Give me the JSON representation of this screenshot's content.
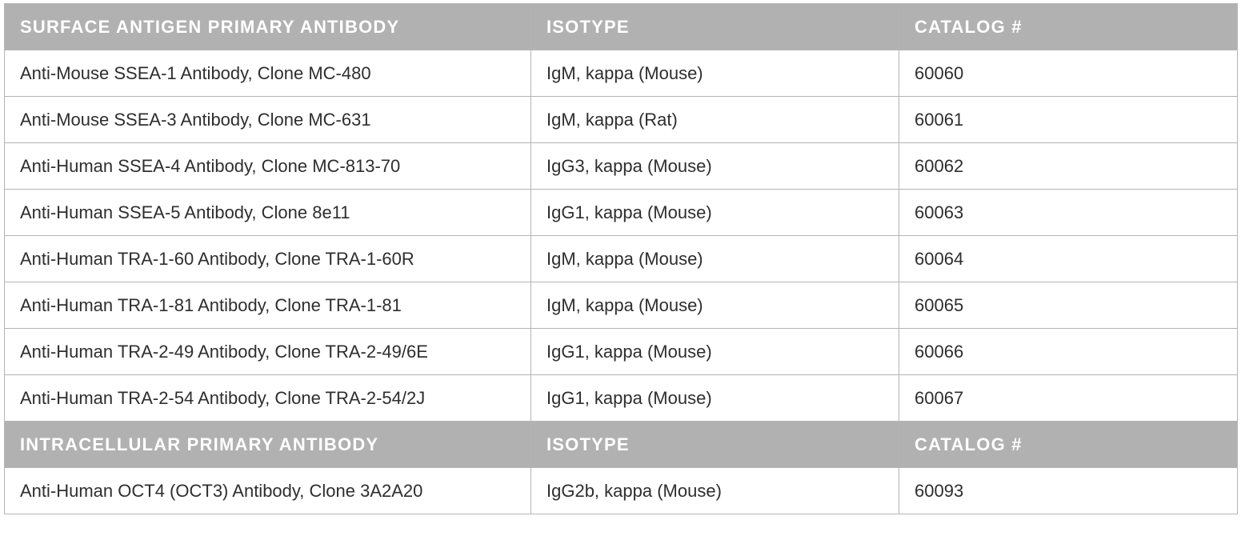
{
  "sections": [
    {
      "headers": [
        "SURFACE ANTIGEN PRIMARY ANTIBODY",
        "ISOTYPE",
        "CATALOG #"
      ],
      "rows": [
        [
          "Anti-Mouse SSEA-1 Antibody, Clone MC-480",
          "IgM, kappa (Mouse)",
          "60060"
        ],
        [
          "Anti-Mouse SSEA-3 Antibody, Clone MC-631",
          "IgM, kappa (Rat)",
          "60061"
        ],
        [
          "Anti-Human SSEA-4 Antibody, Clone MC-813-70",
          "IgG3, kappa (Mouse)",
          "60062"
        ],
        [
          "Anti-Human SSEA-5 Antibody, Clone 8e11",
          "IgG1, kappa (Mouse)",
          "60063"
        ],
        [
          "Anti-Human TRA-1-60 Antibody, Clone TRA-1-60R",
          "IgM, kappa (Mouse)",
          "60064"
        ],
        [
          "Anti-Human TRA-1-81 Antibody, Clone TRA-1-81",
          "IgM, kappa (Mouse)",
          "60065"
        ],
        [
          "Anti-Human TRA-2-49 Antibody, Clone TRA-2-49/6E",
          "IgG1, kappa (Mouse)",
          "60066"
        ],
        [
          "Anti-Human TRA-2-54 Antibody, Clone TRA-2-54/2J",
          "IgG1, kappa (Mouse)",
          "60067"
        ]
      ]
    },
    {
      "headers": [
        "INTRACELLULAR PRIMARY ANTIBODY",
        "ISOTYPE",
        "CATALOG #"
      ],
      "rows": [
        [
          "Anti-Human OCT4 (OCT3) Antibody, Clone 3A2A20",
          "IgG2b, kappa (Mouse)",
          "60093"
        ]
      ]
    }
  ]
}
